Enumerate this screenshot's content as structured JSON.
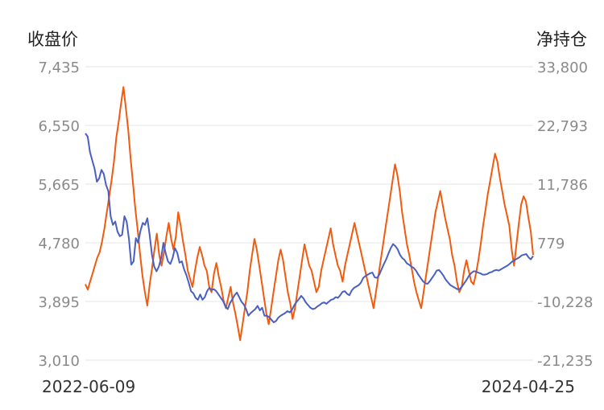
{
  "chart_data": {
    "type": "line",
    "left_axis_title": "收盘价",
    "right_axis_title": "净持仓",
    "left_ticks": [
      "7,435",
      "6,550",
      "5,665",
      "4,780",
      "3,895",
      "3,010"
    ],
    "right_ticks": [
      "33,800",
      "22,793",
      "11,786",
      "779",
      "-10,228",
      "-21,235"
    ],
    "left_range": [
      3010,
      7435
    ],
    "right_range": [
      -21235,
      33800
    ],
    "x_start": "2022-06-09",
    "x_end": "2024-04-25",
    "grid": true,
    "series": [
      {
        "axis": "left",
        "color": "#4a5fc1",
        "values": [
          6430,
          6380,
          6150,
          6020,
          5900,
          5700,
          5750,
          5880,
          5820,
          5650,
          5560,
          5180,
          5050,
          5100,
          4950,
          4880,
          4900,
          5180,
          5100,
          4830,
          4450,
          4500,
          4850,
          4780,
          4960,
          5080,
          5050,
          5150,
          4900,
          4600,
          4420,
          4350,
          4420,
          4550,
          4780,
          4620,
          4500,
          4460,
          4550,
          4700,
          4630,
          4480,
          4500,
          4380,
          4290,
          4180,
          4050,
          4020,
          3950,
          3920,
          4000,
          3920,
          3960,
          4050,
          4100,
          4070,
          4080,
          4050,
          4000,
          3950,
          3900,
          3820,
          3780,
          3870,
          3930,
          3990,
          4030,
          3960,
          3890,
          3850,
          3780,
          3680,
          3720,
          3750,
          3780,
          3830,
          3760,
          3800,
          3680,
          3680,
          3660,
          3620,
          3580,
          3600,
          3650,
          3680,
          3700,
          3720,
          3750,
          3730,
          3770,
          3840,
          3890,
          3930,
          3980,
          3940,
          3880,
          3840,
          3800,
          3780,
          3790,
          3820,
          3840,
          3870,
          3880,
          3860,
          3890,
          3920,
          3930,
          3960,
          3950,
          3990,
          4040,
          4050,
          4010,
          3990,
          4060,
          4100,
          4120,
          4140,
          4180,
          4250,
          4280,
          4300,
          4320,
          4330,
          4260,
          4250,
          4300,
          4380,
          4460,
          4530,
          4620,
          4700,
          4760,
          4730,
          4680,
          4600,
          4550,
          4520,
          4470,
          4450,
          4420,
          4400,
          4360,
          4300,
          4250,
          4200,
          4170,
          4160,
          4200,
          4250,
          4300,
          4360,
          4370,
          4330,
          4280,
          4220,
          4180,
          4140,
          4120,
          4100,
          4080,
          4080,
          4120,
          4170,
          4220,
          4280,
          4320,
          4350,
          4350,
          4330,
          4320,
          4300,
          4300,
          4310,
          4330,
          4340,
          4360,
          4370,
          4360,
          4380,
          4400,
          4420,
          4440,
          4470,
          4500,
          4520,
          4540,
          4560,
          4590,
          4600,
          4610,
          4560,
          4530,
          4580
        ]
      },
      {
        "axis": "right",
        "color": "#f25a0e",
        "values": [
          -7000,
          -8000,
          -6500,
          -5000,
          -3500,
          -2000,
          -1000,
          1000,
          3500,
          6500,
          9500,
          12500,
          16000,
          20500,
          23500,
          27000,
          30000,
          26000,
          22000,
          16500,
          12000,
          7000,
          3000,
          -1500,
          -5500,
          -8500,
          -11000,
          -7000,
          -4000,
          -500,
          2500,
          -1500,
          -3500,
          -1000,
          2000,
          4500,
          1500,
          -500,
          2000,
          6500,
          4000,
          1000,
          -1500,
          -4500,
          -6000,
          -7500,
          -4500,
          -2000,
          0,
          -1500,
          -3500,
          -4500,
          -7500,
          -8500,
          -5000,
          -3000,
          -5500,
          -7500,
          -10000,
          -11500,
          -9500,
          -7500,
          -10500,
          -12500,
          -15000,
          -17500,
          -14500,
          -11500,
          -8500,
          -4500,
          -1500,
          1500,
          -500,
          -3500,
          -6500,
          -9500,
          -12500,
          -14500,
          -11500,
          -8500,
          -5500,
          -2500,
          -500,
          -2500,
          -5500,
          -8500,
          -10500,
          -13500,
          -11500,
          -8500,
          -5500,
          -2500,
          500,
          -1500,
          -3500,
          -4500,
          -6500,
          -8500,
          -7500,
          -4500,
          -2500,
          -500,
          1500,
          3500,
          500,
          -1500,
          -3500,
          -4500,
          -6500,
          -3500,
          -1500,
          500,
          2500,
          4500,
          2500,
          500,
          -1500,
          -3500,
          -5500,
          -7500,
          -9500,
          -11500,
          -8500,
          -5500,
          -2500,
          500,
          3500,
          6500,
          9500,
          12500,
          15500,
          13500,
          10500,
          6500,
          3500,
          500,
          -1500,
          -4000,
          -6500,
          -8500,
          -10000,
          -11500,
          -8500,
          -5500,
          -2500,
          500,
          3500,
          6500,
          8500,
          10500,
          8000,
          5500,
          3500,
          1500,
          -1500,
          -3500,
          -6500,
          -8500,
          -7500,
          -4500,
          -2500,
          -4500,
          -6500,
          -7000,
          -5000,
          -2500,
          500,
          4000,
          7000,
          10000,
          12500,
          15000,
          17500,
          16000,
          13000,
          10500,
          8000,
          6000,
          4000,
          -500,
          -3500,
          500,
          4500,
          8000,
          9500,
          8500,
          5500,
          3000,
          -1500
        ]
      }
    ]
  }
}
